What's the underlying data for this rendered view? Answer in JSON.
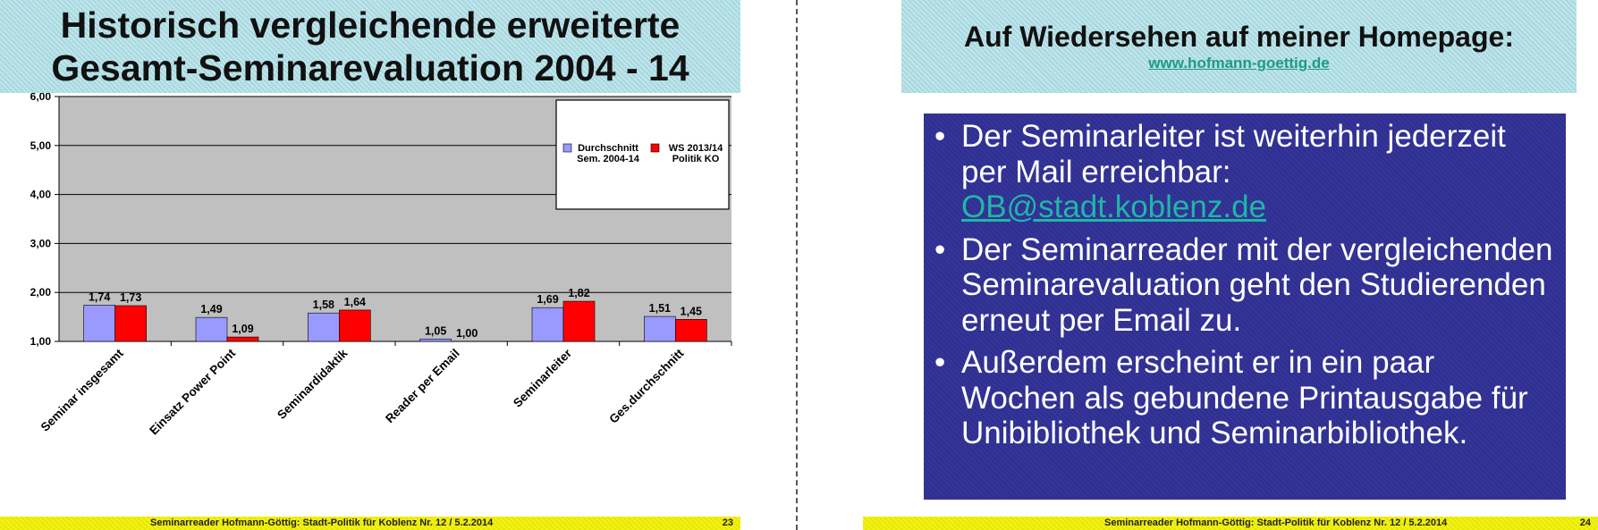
{
  "left_page": {
    "title_line1": "Historisch vergleichende erweiterte",
    "title_line2": "Gesamt-Seminarevaluation 2004 - 14",
    "footer_text": "Seminarreader Hofmann-Göttig: Stadt-Politik für Koblenz Nr. 12 / 5.2.2014",
    "page_number": "23"
  },
  "right_page": {
    "title": "Auf Wiedersehen auf meiner Homepage:",
    "link": "www.hofmann-goettig.de",
    "bullets": [
      {
        "text": "Der Seminarleiter ist weiterhin jederzeit per Mail erreichbar:",
        "link": "OB@stadt.koblenz.de"
      },
      {
        "text": "Der Seminarreader mit der vergleichenden Seminarevaluation geht den Studierenden erneut per Email zu."
      },
      {
        "text": "Außerdem erscheint er in ein paar Wochen als gebundene Printausgabe für Unibibliothek und Seminarbibliothek."
      }
    ],
    "bullet_glyph": "•",
    "footer_text": "Seminarreader Hofmann-Göttig: Stadt-Politik für Koblenz Nr. 12 / 5.2.2014",
    "page_number": "24"
  },
  "chart_data": {
    "type": "bar",
    "categories": [
      "Seminar insgesamt",
      "Einsatz Power Point",
      "Seminardidaktik",
      "Reader per Email",
      "Seminarleiter",
      "Ges.durchschnitt"
    ],
    "series": [
      {
        "name": "Durchschnitt Sem. 2004-14",
        "name_lines": [
          "Durchschnitt",
          "Sem. 2004-14"
        ],
        "color": "#9999ff",
        "values": [
          1.74,
          1.49,
          1.58,
          1.05,
          1.69,
          1.51
        ],
        "labels": [
          "1,74",
          "1,49",
          "1,58",
          "1,05",
          "1,69",
          "1,51"
        ]
      },
      {
        "name": "WS 2013/14 Politik KO",
        "name_lines": [
          "WS 2013/14",
          "Politik KO"
        ],
        "color": "#ff0000",
        "values": [
          1.73,
          1.09,
          1.64,
          1.0,
          1.82,
          1.45
        ],
        "labels": [
          "1,73",
          "1,09",
          "1,64",
          "1,00",
          "1,82",
          "1,45"
        ]
      }
    ],
    "ylim": [
      1.0,
      6.0
    ],
    "yticks": [
      1,
      2,
      3,
      4,
      5,
      6
    ],
    "ytick_labels": [
      "1,00",
      "2,00",
      "3,00",
      "4,00",
      "5,00",
      "6,00"
    ],
    "grid": true,
    "legend_position": "top-right",
    "plot_background": "#c0c0c0"
  },
  "colors": {
    "title_band": "#b5dfe5",
    "content_box": "#33339a",
    "link": "#1f9a86",
    "footer": "#eeee00"
  }
}
